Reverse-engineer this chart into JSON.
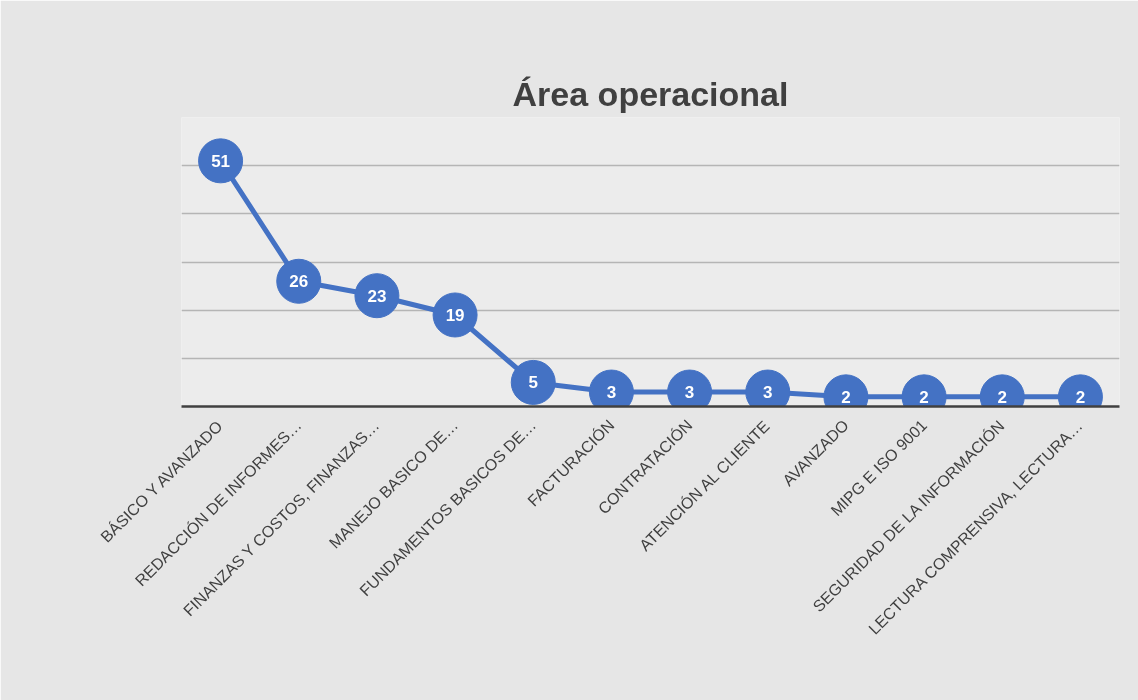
{
  "chart_data": {
    "type": "line",
    "title": "Área operacional",
    "categories": [
      "BÁSICO Y AVANZADO",
      "REDACCIÓN DE INFORMES…",
      "FINANZAS Y COSTOS, FINANZAS…",
      "MANEJO BASICO DE…",
      "FUNDAMENTOS BASICOS DE…",
      "FACTURACIÓN",
      "CONTRATACIÓN",
      "ATENCIÓN AL CLIENTE",
      "AVANZADO",
      "MIPG E ISO 9001",
      "SEGURIDAD DE LA INFORMACIÓN",
      "LECTURA COMPRENSIVA, LECTURA…"
    ],
    "series": [
      {
        "color": "#4472c4",
        "values": [
          51,
          26,
          23,
          19,
          5,
          3,
          3,
          3,
          2,
          2,
          2,
          2
        ]
      }
    ],
    "ylim": [
      0,
      60
    ],
    "yticks": [
      {
        "value": 0,
        "label": null
      },
      {
        "value": 10,
        "label": null
      },
      {
        "value": 20,
        "label": null
      },
      {
        "value": 30,
        "label": null
      },
      {
        "value": 40,
        "label": null
      },
      {
        "value": 50,
        "label": null
      },
      {
        "value": 60,
        "label": null
      }
    ],
    "tick_labels": "x",
    "grid": "y",
    "data_labels": true,
    "marker": "circle",
    "line_style": "solid"
  }
}
